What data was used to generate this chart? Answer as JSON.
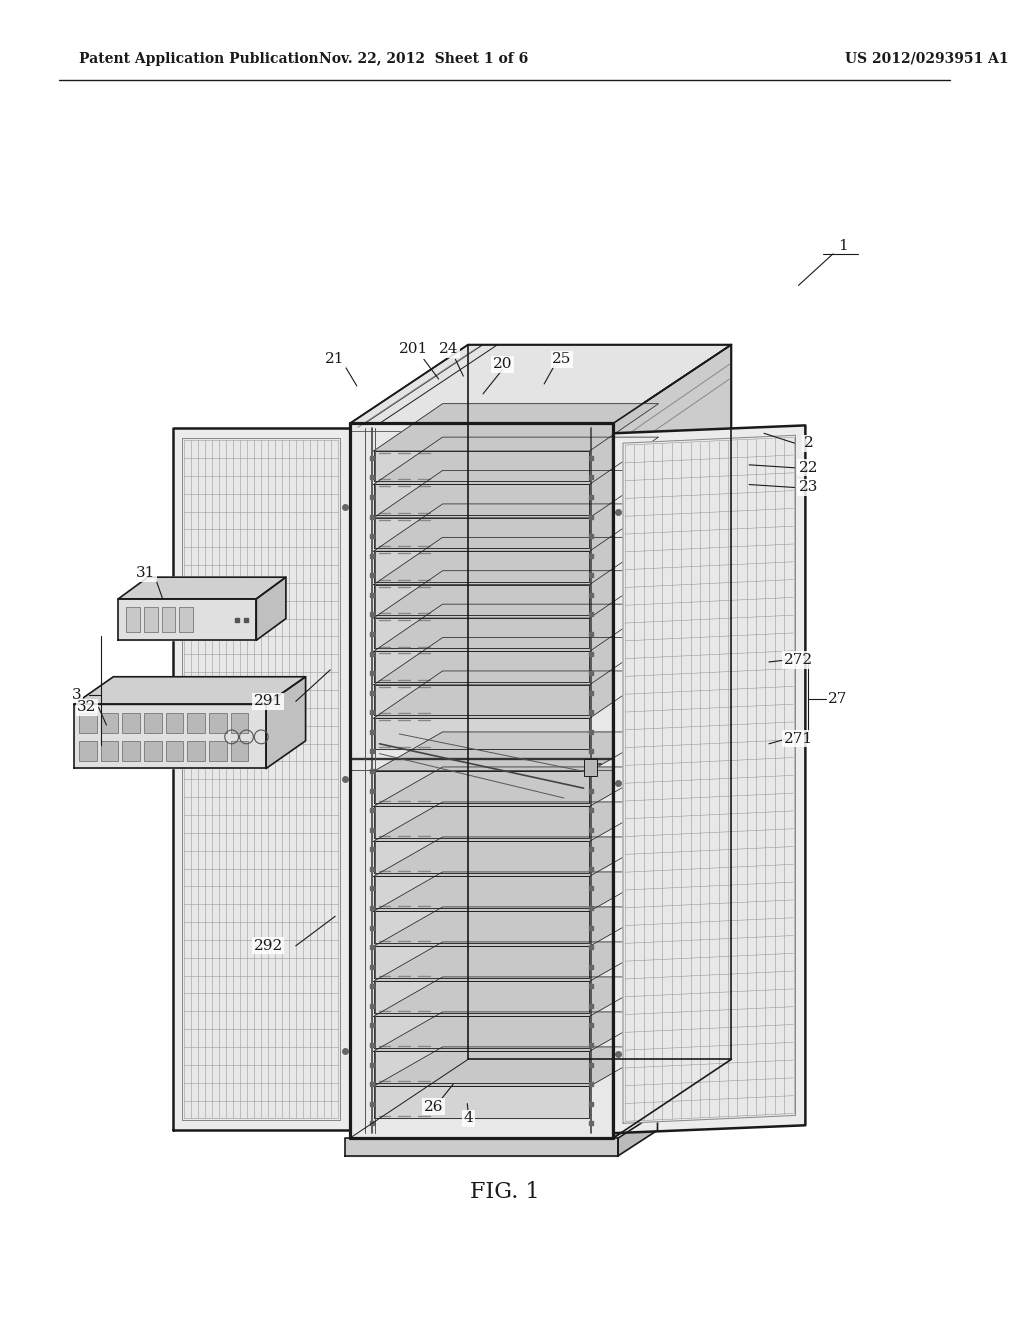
{
  "header_left": "Patent Application Publication",
  "header_mid": "Nov. 22, 2012  Sheet 1 of 6",
  "header_right": "US 2012/0293951 A1",
  "fig_label": "FIG. 1",
  "bg_color": "#ffffff",
  "line_color": "#1a1a1a",
  "lw_heavy": 1.8,
  "lw_med": 1.2,
  "lw_thin": 0.7,
  "lw_mesh": 0.4,
  "gray_light": "#e8e8e8",
  "gray_mid": "#d0d0d0",
  "gray_dark": "#b0b0b0",
  "gray_mesh": "#aaaaaa"
}
